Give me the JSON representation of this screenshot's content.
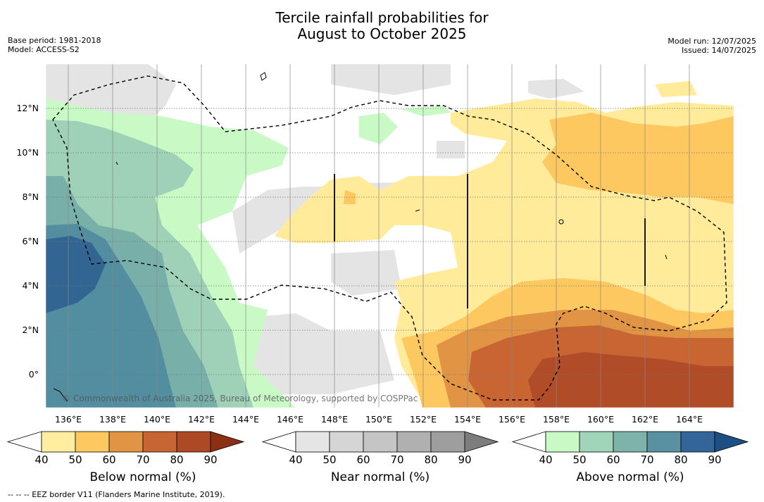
{
  "title_line1": "Tercile rainfall probabilities for",
  "title_line2": "August to October 2025",
  "meta_left": [
    "Base period: 1981-2018",
    "Model: ACCESS-S2"
  ],
  "meta_right": [
    "Model run: 12/07/2025",
    "Issued: 14/07/2025"
  ],
  "map": {
    "copyright": "© Commonwealth of Australia 2025, Bureau of Meteorology, supported by COSPPac",
    "x_ticks": [
      "136°E",
      "138°E",
      "140°E",
      "142°E",
      "144°E",
      "146°E",
      "148°E",
      "150°E",
      "152°E",
      "154°E",
      "156°E",
      "158°E",
      "160°E",
      "162°E",
      "164°E"
    ],
    "y_ticks": [
      "12°N",
      "10°N",
      "8°N",
      "6°N",
      "4°N",
      "2°N",
      "0°"
    ],
    "colors": {
      "ocean_bg": "#ffffff",
      "near_50": "#e4e4e4",
      "below_50": "#ffeb99",
      "below_60": "#fdc85f",
      "below_70": "#e09444",
      "below_80": "#c96532",
      "below_90": "#b04c28",
      "above_50": "#c9fac6",
      "above_60": "#9ed1b8",
      "above_70": "#78afa8",
      "above_80": "#538ea0",
      "above_90": "#336593"
    }
  },
  "colorbars": [
    {
      "label": "Below normal (%)",
      "ticks": [
        "40",
        "50",
        "60",
        "70",
        "80",
        "90"
      ],
      "colors": [
        "#ffeea0",
        "#fdc85f",
        "#e09444",
        "#c96532",
        "#ad4a25"
      ],
      "end_color": "#8b3015"
    },
    {
      "label": "Near normal (%)",
      "ticks": [
        "40",
        "50",
        "60",
        "70",
        "80",
        "90"
      ],
      "colors": [
        "#e5e5e5",
        "#d5d5d5",
        "#c5c5c5",
        "#b0b0b0",
        "#9e9e9e"
      ],
      "end_color": "#7d7d7d"
    },
    {
      "label": "Above normal (%)",
      "ticks": [
        "40",
        "50",
        "60",
        "70",
        "80",
        "90"
      ],
      "colors": [
        "#c9fac6",
        "#a1d5ba",
        "#7db3ab",
        "#5991a3",
        "#34659a"
      ],
      "end_color": "#1d4f85"
    }
  ],
  "footnote": "-- -- -- EEZ border V11 (Flanders Marine Institute, 2019)."
}
